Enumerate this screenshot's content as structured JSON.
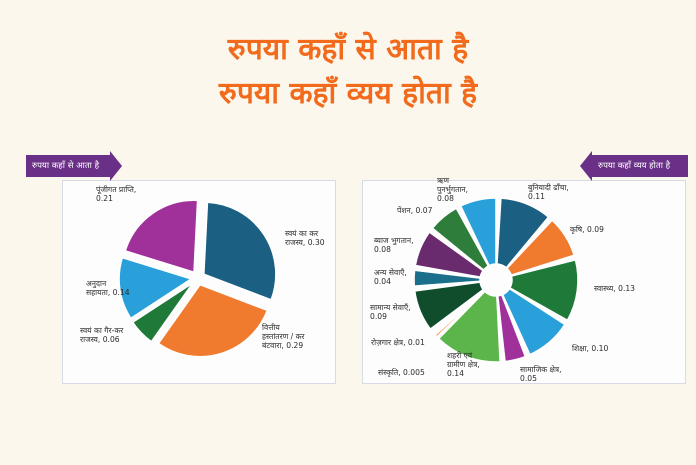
{
  "header": {
    "title_line1": "रुपया कहाँ से आता है",
    "title_line2": "रुपया कहाँ व्यय होता है"
  },
  "labels": {
    "left_arrow": "रुपया कहाँ से आता है",
    "right_arrow": "रुपया कहाँ व्यय होता है"
  },
  "colors": {
    "accent": "#f26a1b",
    "arrow": "#6a2f86"
  },
  "chart_data": [
    {
      "type": "pie",
      "title": "रुपया कहाँ से आता है",
      "slices": [
        {
          "label": [
            "स्वयं का कर",
            "राजस्व, 0.30"
          ],
          "value": 0.3,
          "color": "#1b5f82"
        },
        {
          "label": [
            "वित्तीय",
            "हस्तांतरण / कर",
            "बंटवारा, 0.29"
          ],
          "value": 0.29,
          "color": "#f07a2e"
        },
        {
          "label": [
            "स्वयं का गैर-कर",
            "राजस्व, 0.06"
          ],
          "value": 0.06,
          "color": "#1f7a3a"
        },
        {
          "label": [
            "अनुदान",
            "सहायता, 0.14"
          ],
          "value": 0.14,
          "color": "#2aa0db"
        },
        {
          "label": [
            "पूंजीगत प्राप्ति,",
            "0.21"
          ],
          "value": 0.21,
          "color": "#a0319a"
        }
      ]
    },
    {
      "type": "pie",
      "title": "रुपया कहाँ व्यय होता है",
      "slices": [
        {
          "label": [
            "बुनियादी ढाँचा,",
            "0.11"
          ],
          "value": 0.11,
          "color": "#1b5f82"
        },
        {
          "label": [
            "कृषि, 0.09"
          ],
          "value": 0.09,
          "color": "#f07a2e"
        },
        {
          "label": [
            "स्वास्थ्य, 0.13"
          ],
          "value": 0.13,
          "color": "#1f7a3a"
        },
        {
          "label": [
            "शिक्षा, 0.10"
          ],
          "value": 0.1,
          "color": "#2aa0db"
        },
        {
          "label": [
            "सामाजिक क्षेत्र,",
            "0.05"
          ],
          "value": 0.05,
          "color": "#a0319a"
        },
        {
          "label": [
            "शहरी एवं",
            "ग्रामीण क्षेत्र,",
            "0.14"
          ],
          "value": 0.14,
          "color": "#5bb54a"
        },
        {
          "label": [
            "संस्कृति, 0.005"
          ],
          "value": 0.005,
          "color": "#f07a2e"
        },
        {
          "label": [
            "रोज़गार क्षेत्र, 0.01"
          ],
          "value": 0.01,
          "color": "#c0392b"
        },
        {
          "label": [
            "सामान्य सेवाएँ,",
            "0.09"
          ],
          "value": 0.09,
          "color": "#0f4d2c"
        },
        {
          "label": [
            "अन्य सेवाएँ,",
            "0.04"
          ],
          "value": 0.04,
          "color": "#1b6f8a"
        },
        {
          "label": [
            "ब्याज भुगतान,",
            "0.08"
          ],
          "value": 0.08,
          "color": "#6a2a6e"
        },
        {
          "label": [
            "पेंशन, 0.07"
          ],
          "value": 0.07,
          "color": "#2e7d3b"
        },
        {
          "label": [
            "ऋण",
            "पुनर्भुगतान,",
            "0.08"
          ],
          "value": 0.08,
          "color": "#2aa0db"
        }
      ]
    }
  ]
}
